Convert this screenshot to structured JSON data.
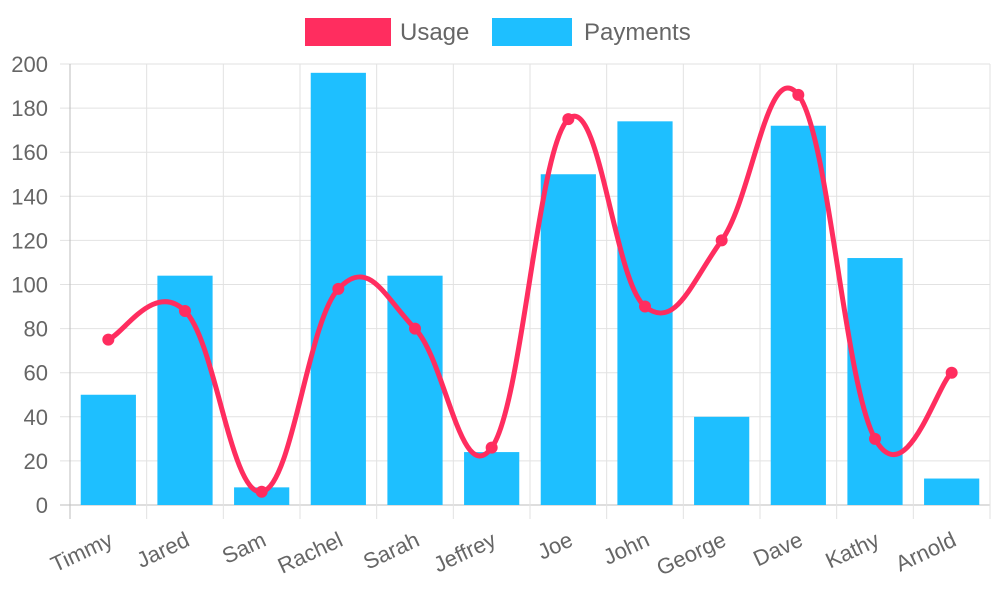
{
  "chart_data": {
    "type": "bar",
    "title": "",
    "xlabel": "",
    "ylabel": "",
    "categories": [
      "Timmy",
      "Jared",
      "Sam",
      "Rachel",
      "Sarah",
      "Jeffrey",
      "Joe",
      "John",
      "George",
      "Dave",
      "Kathy",
      "Arnold"
    ],
    "ylim": [
      0,
      200
    ],
    "yticks": [
      0,
      20,
      40,
      60,
      80,
      100,
      120,
      140,
      160,
      180,
      200
    ],
    "grid": true,
    "legend": "top",
    "series": [
      {
        "name": "Usage",
        "type": "line",
        "smooth": true,
        "color": "#ff2d5f",
        "values": [
          75,
          88,
          6,
          98,
          80,
          26,
          175,
          90,
          120,
          186,
          30,
          60
        ]
      },
      {
        "name": "Payments",
        "type": "bar",
        "color": "#1ebfff",
        "values": [
          50,
          104,
          8,
          196,
          104,
          24,
          150,
          174,
          40,
          172,
          112,
          12
        ]
      }
    ]
  }
}
